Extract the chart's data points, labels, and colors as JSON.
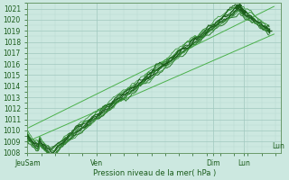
{
  "xlabel": "Pression niveau de la mer( hPa )",
  "ylim": [
    1008,
    1021.5
  ],
  "yticks": [
    1008,
    1009,
    1010,
    1011,
    1012,
    1013,
    1014,
    1015,
    1016,
    1017,
    1018,
    1019,
    1020,
    1021
  ],
  "xtick_labels": [
    "JeuSam",
    "Ven",
    "Dim",
    "Lun"
  ],
  "xtick_positions": [
    0.0,
    0.285,
    0.77,
    0.895
  ],
  "xlim": [
    0.0,
    1.05
  ],
  "bg_color": "#cce8e0",
  "grid_color_minor": "#b8d8d0",
  "grid_color_major": "#a0c8be",
  "line_color_dark": "#1a5c1a",
  "line_color_mid": "#2a7a2a",
  "line_color_light": "#3d963d",
  "ref_line_color": "#4ab04a",
  "n_points": 200
}
